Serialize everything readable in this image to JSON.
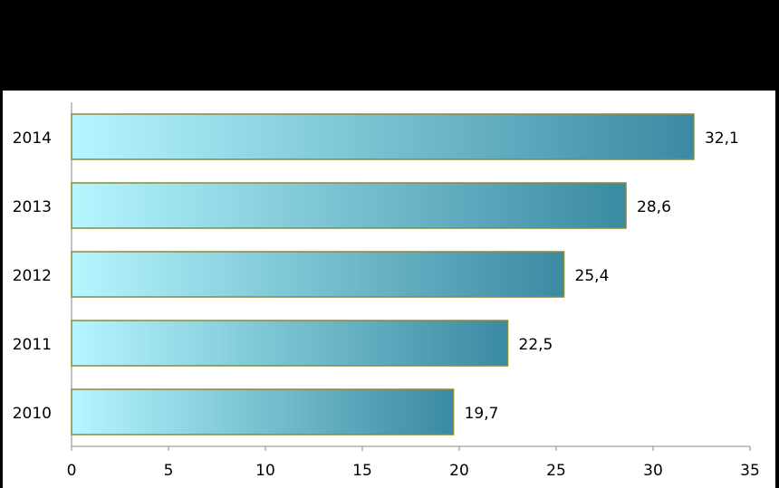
{
  "chart_data": {
    "type": "bar",
    "orientation": "horizontal",
    "categories": [
      "2010",
      "2011",
      "2012",
      "2013",
      "2014"
    ],
    "values": [
      19.7,
      22.5,
      25.4,
      28.6,
      32.1
    ],
    "value_labels": [
      "19,7",
      "22,5",
      "25,4",
      "28,6",
      "32,1"
    ],
    "color": [
      "#b5f6ff",
      "#3a8aa2"
    ],
    "xlim": [
      0,
      35
    ],
    "xticks": [
      0,
      5,
      10,
      15,
      20,
      25,
      30,
      35
    ],
    "grid": false
  }
}
